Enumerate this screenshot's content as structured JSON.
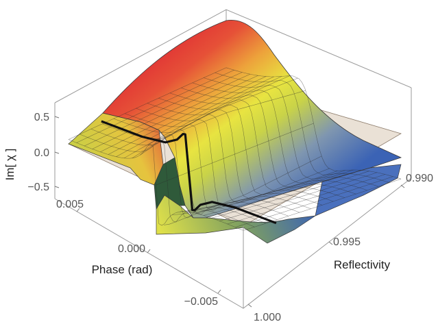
{
  "chart_data": {
    "type": "surface3d",
    "zlabel": "Im[ χ ]",
    "xlabel": "Phase (rad)",
    "ylabel": "Reflectivity",
    "zlim": [
      -0.5,
      0.5
    ],
    "xlim": [
      -0.0075,
      0.0075
    ],
    "ylim": [
      0.988,
      1.0
    ],
    "z_ticks": [
      "0.5",
      "0.0",
      "−0.5"
    ],
    "x_ticks": [
      "0.005",
      "0.000",
      "−0.005"
    ],
    "y_ticks": [
      "0.990",
      "0.995",
      "1.000"
    ],
    "colormap": [
      "#3b63b5",
      "#5a7ec6",
      "#8aa0a8",
      "#b8c84a",
      "#e3e53f",
      "#f0b03a",
      "#e8553a",
      "#e23a36"
    ],
    "grid": true,
    "reference_plane": {
      "z": 0,
      "color": "#d9c8b4"
    },
    "highlighted_curve": {
      "reflectivity": 0.9975,
      "color": "#111111",
      "x": [
        0.0075,
        0.004,
        0.002,
        0.001,
        0.0005,
        0.0003,
        0.0,
        -0.0003,
        -0.0005,
        -0.001,
        -0.002,
        -0.004,
        -0.0075
      ],
      "z": [
        0.13,
        0.18,
        0.25,
        0.36,
        0.47,
        0.48,
        0.0,
        -0.48,
        -0.47,
        -0.36,
        -0.25,
        -0.18,
        -0.13
      ]
    }
  }
}
